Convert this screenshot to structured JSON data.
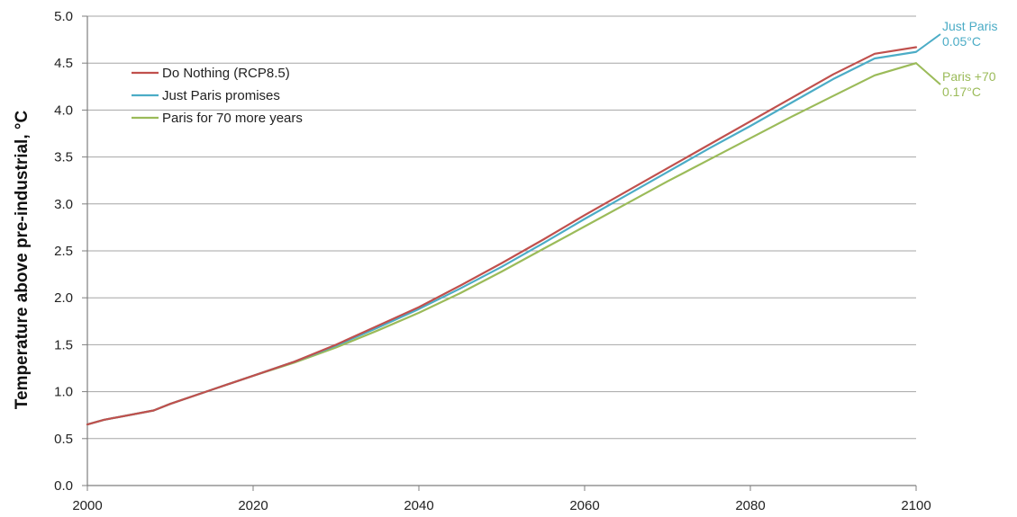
{
  "chart_data": {
    "type": "line",
    "title": "",
    "xlabel": "",
    "ylabel": "Temperature above pre-industrial, °C",
    "xlim": [
      2000,
      2100
    ],
    "ylim": [
      0,
      5
    ],
    "x_ticks": [
      "2000",
      "2020",
      "2040",
      "2060",
      "2080",
      "2100"
    ],
    "y_ticks": [
      "0.0",
      "0.5",
      "1.0",
      "1.5",
      "2.0",
      "2.5",
      "3.0",
      "3.5",
      "4.0",
      "4.5",
      "5.0"
    ],
    "grid": "horizontal",
    "legend_position": "top-left",
    "series": [
      {
        "name": "Do Nothing (RCP8.5)",
        "color": "#c0504d",
        "x": [
          2000,
          2002,
          2008,
          2010,
          2015,
          2020,
          2025,
          2030,
          2035,
          2040,
          2045,
          2050,
          2055,
          2060,
          2065,
          2070,
          2075,
          2080,
          2085,
          2090,
          2095,
          2100
        ],
        "y": [
          0.65,
          0.7,
          0.8,
          0.87,
          1.02,
          1.17,
          1.32,
          1.5,
          1.7,
          1.9,
          2.13,
          2.37,
          2.62,
          2.88,
          3.13,
          3.38,
          3.63,
          3.88,
          4.13,
          4.38,
          4.6,
          4.67
        ]
      },
      {
        "name": "Just Paris promises",
        "color": "#4bacc6",
        "x": [
          2000,
          2002,
          2008,
          2010,
          2015,
          2020,
          2025,
          2030,
          2035,
          2040,
          2045,
          2050,
          2055,
          2060,
          2065,
          2070,
          2075,
          2080,
          2085,
          2090,
          2095,
          2100
        ],
        "y": [
          0.65,
          0.7,
          0.8,
          0.87,
          1.02,
          1.17,
          1.32,
          1.49,
          1.68,
          1.88,
          2.1,
          2.33,
          2.58,
          2.84,
          3.09,
          3.34,
          3.59,
          3.83,
          4.08,
          4.33,
          4.55,
          4.62
        ]
      },
      {
        "name": "Paris for 70 more years",
        "color": "#9bbb59",
        "x": [
          2000,
          2002,
          2008,
          2010,
          2015,
          2020,
          2025,
          2030,
          2035,
          2040,
          2045,
          2050,
          2055,
          2060,
          2065,
          2070,
          2075,
          2080,
          2085,
          2090,
          2095,
          2100
        ],
        "y": [
          0.65,
          0.7,
          0.8,
          0.87,
          1.02,
          1.17,
          1.31,
          1.47,
          1.65,
          1.84,
          2.05,
          2.28,
          2.52,
          2.76,
          3.0,
          3.24,
          3.47,
          3.7,
          3.93,
          4.15,
          4.37,
          4.5
        ]
      }
    ],
    "annotations": [
      {
        "lines": [
          "Just Paris",
          "0.05°C"
        ],
        "color": "#4bacc6",
        "series_index": 1
      },
      {
        "lines": [
          "Paris +70",
          "0.17°C"
        ],
        "color": "#9bbb59",
        "series_index": 2
      }
    ],
    "grid_color": "#a6a6a6",
    "axis_color": "#7f7f7f"
  }
}
